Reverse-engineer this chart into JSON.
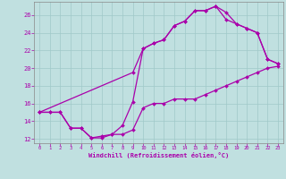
{
  "xlabel": "Windchill (Refroidissement éolien,°C)",
  "bg_color": "#c0e0e0",
  "line_color": "#aa00aa",
  "grid_color": "#a0c8c8",
  "xlim": [
    -0.5,
    23.5
  ],
  "ylim": [
    11.5,
    27.5
  ],
  "yticks": [
    12,
    14,
    16,
    18,
    20,
    22,
    24,
    26
  ],
  "xticks": [
    0,
    1,
    2,
    3,
    4,
    5,
    6,
    7,
    8,
    9,
    10,
    11,
    12,
    13,
    14,
    15,
    16,
    17,
    18,
    19,
    20,
    21,
    22,
    23
  ],
  "line1_x": [
    0,
    1,
    2,
    3,
    4,
    5,
    6,
    7,
    8,
    9,
    10,
    11,
    12,
    13,
    14,
    15,
    16,
    17,
    18,
    19,
    20,
    21,
    22,
    23
  ],
  "line1_y": [
    15,
    15,
    15,
    13.2,
    13.2,
    12.1,
    12.1,
    12.5,
    12.5,
    13.0,
    15.5,
    16.0,
    16.0,
    16.5,
    16.5,
    16.5,
    17.0,
    17.5,
    18.0,
    18.5,
    19.0,
    19.5,
    20.0,
    20.2
  ],
  "line2_x": [
    0,
    1,
    2,
    3,
    4,
    5,
    6,
    7,
    8,
    9,
    10,
    11,
    12,
    13,
    14,
    15,
    16,
    17,
    18,
    19,
    20,
    21,
    22,
    23
  ],
  "line2_y": [
    15,
    15,
    15,
    13.2,
    13.2,
    12.1,
    12.3,
    12.5,
    13.5,
    16.2,
    22.2,
    22.8,
    23.2,
    24.8,
    25.3,
    26.5,
    26.5,
    27.0,
    26.3,
    25.0,
    24.5,
    24.0,
    21.0,
    20.5
  ],
  "line3_x": [
    0,
    9,
    10,
    11,
    12,
    13,
    14,
    15,
    16,
    17,
    18,
    19,
    20,
    21,
    22,
    23
  ],
  "line3_y": [
    15,
    19.5,
    22.2,
    22.8,
    23.2,
    24.8,
    25.3,
    26.5,
    26.5,
    27.0,
    25.5,
    25.0,
    24.5,
    24.0,
    21.0,
    20.5
  ]
}
